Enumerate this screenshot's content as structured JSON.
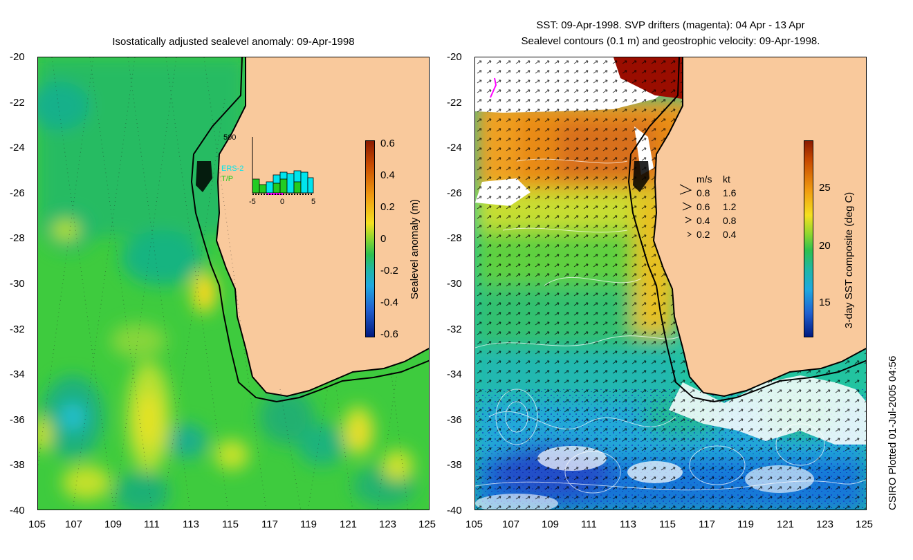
{
  "left_panel": {
    "title": "Isostatically adjusted sealevel anomaly: 09-Apr-1998",
    "colorbar": {
      "title": "Sealevel anomaly (m)",
      "ticks": [
        "0.6",
        "0.4",
        "0.2",
        "0",
        "-0.2",
        "-0.4",
        "-0.6"
      ]
    },
    "inset": {
      "ymax_label": "500",
      "legend": [
        "ERS-2",
        "T/P"
      ],
      "x_ticks": [
        "-5",
        "0",
        "5"
      ],
      "colors": {
        "ers2": "#00e5ee",
        "tp": "#22cc22",
        "window": "#ff00ff"
      }
    }
  },
  "right_panel": {
    "title_line1": "SST: 09-Apr-1998. SVP drifters (magenta): 04 Apr - 13 Apr",
    "title_line2": "Sealevel contours (0.1 m) and geostrophic velocity: 09-Apr-1998.",
    "colorbar": {
      "title": "3-day SST composite (deg C)",
      "ticks": [
        "25",
        "20",
        "15"
      ]
    },
    "velocity_legend": {
      "header_ms": "m/s",
      "header_kt": "kt",
      "rows": [
        {
          "ms": "0.8",
          "kt": "1.6"
        },
        {
          "ms": "0.6",
          "kt": "1.2"
        },
        {
          "ms": "0.4",
          "kt": "0.8"
        },
        {
          "ms": "0.2",
          "kt": "0.4"
        }
      ]
    }
  },
  "axes": {
    "lat_ticks": [
      "-20",
      "-22",
      "-24",
      "-26",
      "-28",
      "-30",
      "-32",
      "-34",
      "-36",
      "-38",
      "-40"
    ],
    "lon_ticks": [
      "105",
      "107",
      "109",
      "111",
      "113",
      "115",
      "117",
      "119",
      "121",
      "123",
      "125"
    ]
  },
  "footer": "CSIRO Plotted 01-Jul-2005 04:56",
  "colors": {
    "land": "#f9c99c",
    "ocean_base": "#3ecb3e",
    "coast": "#000000"
  }
}
